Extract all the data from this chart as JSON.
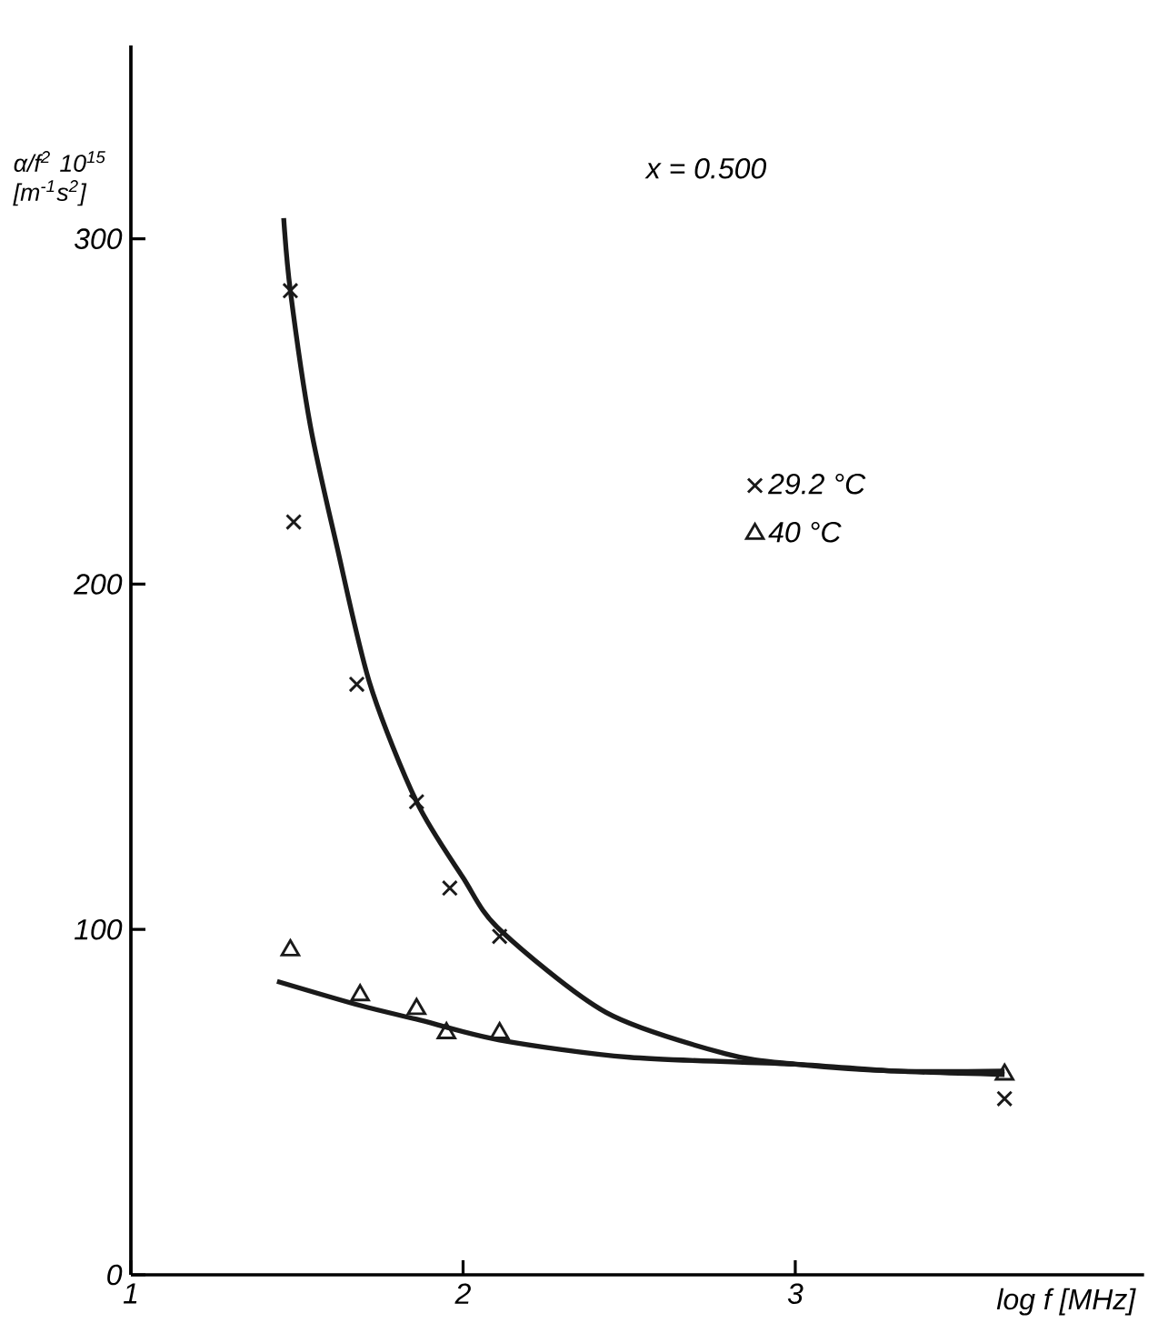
{
  "chart_data": {
    "type": "scatter",
    "xlabel": "log f [MHz]",
    "ylabel": "α/f$^{2}$ 10$^{15}$ [m$^{-1}$s$^{2}$]",
    "annotations": [
      "x = 0.500"
    ],
    "xlim": [
      1,
      4.05
    ],
    "ylim": [
      0,
      356
    ],
    "xticks": [
      1,
      2,
      3
    ],
    "yticks": [
      0,
      100,
      200,
      300
    ],
    "grid": false,
    "legend": "right",
    "series": [
      {
        "name": "29.2 °C",
        "marker": "cross",
        "color": "#1a1a1a",
        "x": [
          1.48,
          1.49,
          1.68,
          1.86,
          1.96,
          2.11,
          3.63
        ],
        "values": [
          285,
          218,
          171,
          137,
          112,
          98,
          51
        ]
      },
      {
        "name": "40 °C",
        "marker": "triangle",
        "color": "#1a1a1a",
        "x": [
          1.48,
          1.69,
          1.86,
          1.95,
          2.11,
          3.63
        ],
        "values": [
          94,
          81,
          77,
          70,
          70,
          58
        ]
      },
      {
        "type": "line",
        "marker": "none",
        "line_style": "solid",
        "color": "#1a1a1a",
        "x": [
          1.46,
          1.48,
          1.54,
          1.62,
          1.72,
          1.86,
          2.0,
          2.11,
          2.43,
          2.79,
          3.0,
          3.3,
          3.63
        ],
        "values": [
          306,
          285,
          246,
          211,
          171,
          137,
          115,
          100,
          76,
          64,
          61,
          59,
          59
        ]
      },
      {
        "type": "line",
        "marker": "none",
        "line_style": "solid",
        "color": "#1a1a1a",
        "x": [
          1.44,
          1.69,
          1.86,
          2.11,
          2.5,
          3.0,
          3.3,
          3.63
        ],
        "values": [
          85,
          78,
          74,
          68,
          63,
          61,
          59,
          58
        ]
      }
    ]
  }
}
